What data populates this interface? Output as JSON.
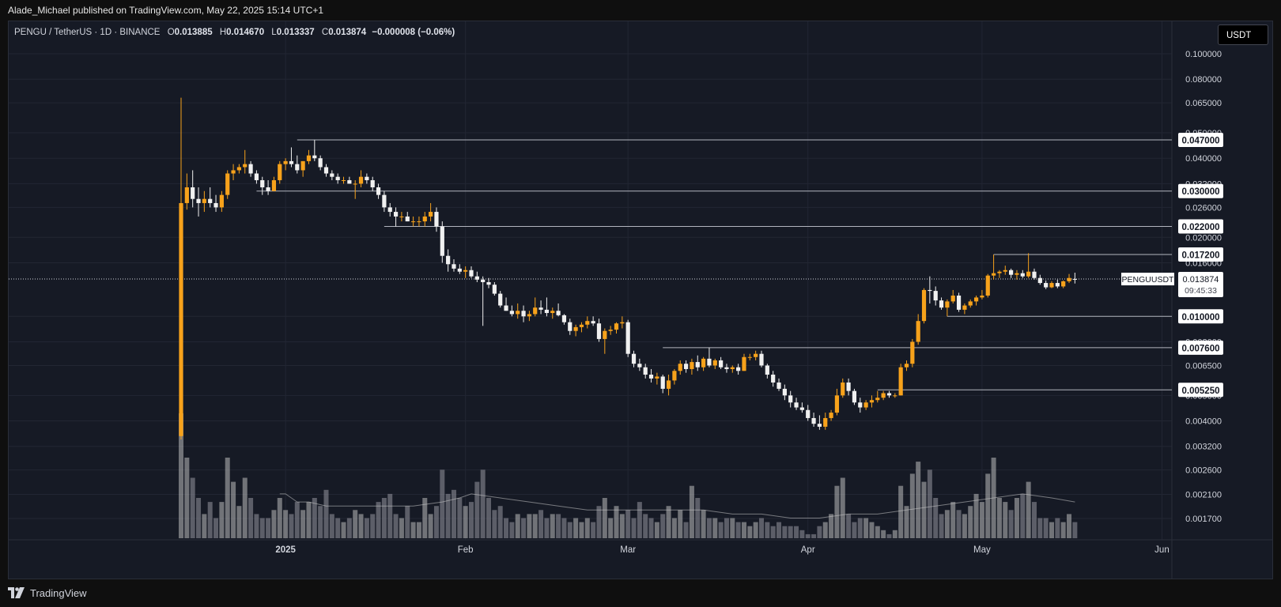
{
  "header": {
    "published": "Alade_Michael published on TradingView.com, May 22, 2025 15:14 UTC+1"
  },
  "legend": {
    "symbol": "PENGU / TetherUS · 1D · BINANCE",
    "o_label": "O",
    "o": "0.013885",
    "h_label": "H",
    "h": "0.014670",
    "l_label": "L",
    "l": "0.013337",
    "c_label": "C",
    "c": "0.013874",
    "change": "−0.000008 (−0.06%)"
  },
  "currency_button": "USDT",
  "price_tag": {
    "symbol": "PENGUUSDT",
    "price": "0.013874",
    "countdown": "09:45:33"
  },
  "footer": {
    "brand": "TradingView"
  },
  "colors": {
    "up": "#f7a21b",
    "down": "#f0f0f0",
    "background": "#161a25",
    "grid": "#222633"
  },
  "chart_data": {
    "type": "candlestick",
    "scale": "log",
    "x_ticks": [
      {
        "label": "2025",
        "day": 18
      },
      {
        "label": "Feb",
        "day": 49
      },
      {
        "label": "Mar",
        "day": 77
      },
      {
        "label": "Apr",
        "day": 108
      },
      {
        "label": "May",
        "day": 138
      },
      {
        "label": "Jun",
        "day": 169
      }
    ],
    "y_ticks": [
      "0.100000",
      "0.080000",
      "0.065000",
      "0.050000",
      "0.040000",
      "0.032000",
      "0.026000",
      "0.020000",
      "0.016000",
      "0.010000",
      "0.008000",
      "0.006500",
      "0.005000",
      "0.004000",
      "0.003200",
      "0.002600",
      "0.002100",
      "0.001700"
    ],
    "horizontal_levels": [
      {
        "label": "0.047000",
        "value": 0.047,
        "from_day": 20
      },
      {
        "label": "0.030000",
        "value": 0.03,
        "from_day": 13
      },
      {
        "label": "0.022000",
        "value": 0.022,
        "from_day": 35
      },
      {
        "label": "0.017200",
        "value": 0.0172,
        "from_day": 140
      },
      {
        "label": "0.010000",
        "value": 0.01,
        "from_day": 132
      },
      {
        "label": "0.007600",
        "value": 0.0076,
        "from_day": 83
      },
      {
        "label": "0.005250",
        "value": 0.00525,
        "from_day": 120
      }
    ],
    "current_price": 0.013874,
    "candles": [
      [
        0,
        0.0035,
        0.068,
        0.0034,
        0.027,
        31
      ],
      [
        1,
        0.027,
        0.035,
        0.0255,
        0.031,
        20
      ],
      [
        2,
        0.031,
        0.036,
        0.026,
        0.028,
        15
      ],
      [
        3,
        0.028,
        0.031,
        0.024,
        0.027,
        10
      ],
      [
        4,
        0.027,
        0.03,
        0.025,
        0.028,
        6
      ],
      [
        5,
        0.028,
        0.031,
        0.026,
        0.027,
        9
      ],
      [
        6,
        0.027,
        0.029,
        0.025,
        0.026,
        5
      ],
      [
        7,
        0.026,
        0.03,
        0.025,
        0.029,
        9
      ],
      [
        8,
        0.029,
        0.036,
        0.028,
        0.035,
        20
      ],
      [
        9,
        0.035,
        0.038,
        0.033,
        0.036,
        14
      ],
      [
        10,
        0.036,
        0.038,
        0.035,
        0.037,
        8
      ],
      [
        11,
        0.037,
        0.043,
        0.035,
        0.038,
        15
      ],
      [
        12,
        0.038,
        0.039,
        0.034,
        0.035,
        10
      ],
      [
        13,
        0.035,
        0.036,
        0.032,
        0.033,
        6
      ],
      [
        14,
        0.033,
        0.034,
        0.029,
        0.031,
        5
      ],
      [
        15,
        0.031,
        0.033,
        0.029,
        0.03,
        5
      ],
      [
        16,
        0.03,
        0.034,
        0.03,
        0.033,
        7
      ],
      [
        17,
        0.033,
        0.039,
        0.032,
        0.038,
        10
      ],
      [
        18,
        0.038,
        0.04,
        0.036,
        0.039,
        7
      ],
      [
        19,
        0.039,
        0.044,
        0.037,
        0.038,
        6
      ],
      [
        20,
        0.038,
        0.041,
        0.035,
        0.036,
        9
      ],
      [
        21,
        0.036,
        0.039,
        0.034,
        0.039,
        7
      ],
      [
        22,
        0.039,
        0.043,
        0.038,
        0.041,
        9
      ],
      [
        23,
        0.041,
        0.047,
        0.039,
        0.04,
        10
      ],
      [
        24,
        0.04,
        0.041,
        0.036,
        0.037,
        8
      ],
      [
        25,
        0.037,
        0.038,
        0.034,
        0.035,
        12
      ],
      [
        26,
        0.035,
        0.036,
        0.033,
        0.034,
        6
      ],
      [
        27,
        0.034,
        0.035,
        0.032,
        0.033,
        5
      ],
      [
        28,
        0.033,
        0.034,
        0.032,
        0.033,
        4
      ],
      [
        29,
        0.033,
        0.034,
        0.032,
        0.032,
        5
      ],
      [
        30,
        0.032,
        0.033,
        0.028,
        0.032,
        7
      ],
      [
        31,
        0.032,
        0.036,
        0.031,
        0.034,
        6
      ],
      [
        32,
        0.034,
        0.035,
        0.032,
        0.033,
        5
      ],
      [
        33,
        0.033,
        0.034,
        0.03,
        0.031,
        6
      ],
      [
        34,
        0.031,
        0.032,
        0.028,
        0.029,
        9
      ],
      [
        35,
        0.029,
        0.03,
        0.025,
        0.026,
        10
      ],
      [
        36,
        0.026,
        0.027,
        0.024,
        0.025,
        11
      ],
      [
        37,
        0.025,
        0.026,
        0.022,
        0.024,
        6
      ],
      [
        38,
        0.024,
        0.025,
        0.023,
        0.024,
        5
      ],
      [
        39,
        0.024,
        0.025,
        0.023,
        0.023,
        8
      ],
      [
        40,
        0.023,
        0.024,
        0.022,
        0.023,
        4
      ],
      [
        41,
        0.023,
        0.024,
        0.022,
        0.023,
        4
      ],
      [
        42,
        0.023,
        0.025,
        0.022,
        0.024,
        10
      ],
      [
        43,
        0.024,
        0.027,
        0.023,
        0.025,
        6
      ],
      [
        44,
        0.025,
        0.026,
        0.021,
        0.022,
        8
      ],
      [
        45,
        0.022,
        0.023,
        0.016,
        0.017,
        17
      ],
      [
        46,
        0.017,
        0.018,
        0.0148,
        0.0158,
        11
      ],
      [
        47,
        0.0158,
        0.0165,
        0.0148,
        0.0152,
        12
      ],
      [
        48,
        0.0152,
        0.0158,
        0.0145,
        0.0148,
        10
      ],
      [
        49,
        0.0148,
        0.0155,
        0.014,
        0.015,
        8
      ],
      [
        50,
        0.015,
        0.0155,
        0.014,
        0.0142,
        9
      ],
      [
        51,
        0.0142,
        0.0148,
        0.0135,
        0.0138,
        14
      ],
      [
        52,
        0.0138,
        0.0142,
        0.0092,
        0.0135,
        17
      ],
      [
        53,
        0.0135,
        0.014,
        0.0128,
        0.0132,
        10
      ],
      [
        54,
        0.0132,
        0.0135,
        0.012,
        0.0122,
        7
      ],
      [
        55,
        0.0122,
        0.0125,
        0.0108,
        0.011,
        8
      ],
      [
        56,
        0.011,
        0.0118,
        0.0105,
        0.0105,
        5
      ],
      [
        57,
        0.0105,
        0.011,
        0.01,
        0.0102,
        4
      ],
      [
        58,
        0.0102,
        0.0112,
        0.0098,
        0.0105,
        6
      ],
      [
        59,
        0.0105,
        0.011,
        0.0095,
        0.01,
        5
      ],
      [
        60,
        0.01,
        0.0105,
        0.0096,
        0.0102,
        6
      ],
      [
        61,
        0.0102,
        0.0118,
        0.01,
        0.0108,
        6
      ],
      [
        62,
        0.0108,
        0.0115,
        0.0102,
        0.0106,
        7
      ],
      [
        63,
        0.0106,
        0.0118,
        0.01,
        0.0103,
        5
      ],
      [
        64,
        0.0103,
        0.0108,
        0.0098,
        0.0105,
        6
      ],
      [
        65,
        0.0105,
        0.0112,
        0.01,
        0.0101,
        6
      ],
      [
        66,
        0.0101,
        0.0102,
        0.0093,
        0.0095,
        5
      ],
      [
        67,
        0.0095,
        0.0098,
        0.0085,
        0.0088,
        4
      ],
      [
        68,
        0.0088,
        0.0093,
        0.0084,
        0.0091,
        5
      ],
      [
        69,
        0.0091,
        0.0095,
        0.0087,
        0.0093,
        4
      ],
      [
        70,
        0.0093,
        0.01,
        0.009,
        0.0096,
        5
      ],
      [
        71,
        0.0096,
        0.01,
        0.0092,
        0.0094,
        4
      ],
      [
        72,
        0.0094,
        0.0098,
        0.008,
        0.0082,
        8
      ],
      [
        73,
        0.0082,
        0.009,
        0.0072,
        0.0088,
        10
      ],
      [
        74,
        0.0088,
        0.0092,
        0.0085,
        0.0089,
        5
      ],
      [
        75,
        0.0089,
        0.0095,
        0.0086,
        0.0094,
        8
      ],
      [
        76,
        0.0094,
        0.01,
        0.009,
        0.0095,
        6
      ],
      [
        77,
        0.0095,
        0.0097,
        0.007,
        0.0072,
        7
      ],
      [
        78,
        0.0072,
        0.0074,
        0.0064,
        0.0066,
        5
      ],
      [
        79,
        0.0066,
        0.0069,
        0.0062,
        0.0064,
        9
      ],
      [
        80,
        0.0064,
        0.0066,
        0.0058,
        0.006,
        6
      ],
      [
        81,
        0.006,
        0.0063,
        0.0056,
        0.0058,
        5
      ],
      [
        82,
        0.0058,
        0.0061,
        0.0055,
        0.0059,
        4
      ],
      [
        83,
        0.0059,
        0.006,
        0.0051,
        0.0053,
        6
      ],
      [
        84,
        0.0053,
        0.006,
        0.005,
        0.0057,
        8
      ],
      [
        85,
        0.0057,
        0.0063,
        0.0055,
        0.0062,
        5
      ],
      [
        86,
        0.0062,
        0.0068,
        0.006,
        0.0066,
        7
      ],
      [
        87,
        0.0066,
        0.0068,
        0.0061,
        0.0063,
        4
      ],
      [
        88,
        0.0063,
        0.0069,
        0.006,
        0.0067,
        13
      ],
      [
        89,
        0.0067,
        0.0071,
        0.0062,
        0.0064,
        10
      ],
      [
        90,
        0.0064,
        0.007,
        0.0062,
        0.0069,
        7
      ],
      [
        91,
        0.0069,
        0.0076,
        0.0064,
        0.0065,
        5
      ],
      [
        92,
        0.0065,
        0.0069,
        0.0063,
        0.0068,
        5
      ],
      [
        93,
        0.0068,
        0.007,
        0.0063,
        0.0064,
        4
      ],
      [
        94,
        0.0064,
        0.0066,
        0.0061,
        0.0063,
        5
      ],
      [
        95,
        0.0063,
        0.0065,
        0.0061,
        0.0064,
        5
      ],
      [
        96,
        0.0064,
        0.0066,
        0.006,
        0.0062,
        4
      ],
      [
        97,
        0.0062,
        0.0072,
        0.0062,
        0.007,
        4
      ],
      [
        98,
        0.007,
        0.0072,
        0.0068,
        0.007,
        3
      ],
      [
        99,
        0.007,
        0.0074,
        0.0068,
        0.0072,
        4
      ],
      [
        100,
        0.0072,
        0.0074,
        0.0064,
        0.0065,
        5
      ],
      [
        101,
        0.0065,
        0.0066,
        0.0058,
        0.006,
        4
      ],
      [
        102,
        0.006,
        0.0062,
        0.0054,
        0.0056,
        3
      ],
      [
        103,
        0.0056,
        0.0058,
        0.0052,
        0.0053,
        4
      ],
      [
        104,
        0.0053,
        0.0055,
        0.0048,
        0.005,
        3
      ],
      [
        105,
        0.005,
        0.0052,
        0.0045,
        0.0047,
        3
      ],
      [
        106,
        0.0047,
        0.0049,
        0.0044,
        0.0045,
        3
      ],
      [
        107,
        0.0045,
        0.0047,
        0.0043,
        0.0044,
        2
      ],
      [
        108,
        0.0044,
        0.0046,
        0.004,
        0.0041,
        1
      ],
      [
        109,
        0.0041,
        0.0043,
        0.0038,
        0.0039,
        1
      ],
      [
        110,
        0.0039,
        0.0042,
        0.0037,
        0.0038,
        3
      ],
      [
        111,
        0.0038,
        0.0043,
        0.0037,
        0.0041,
        4
      ],
      [
        112,
        0.0041,
        0.0044,
        0.004,
        0.0043,
        6
      ],
      [
        113,
        0.0043,
        0.0053,
        0.0042,
        0.005,
        13
      ],
      [
        114,
        0.005,
        0.0058,
        0.0049,
        0.0056,
        15
      ],
      [
        115,
        0.0056,
        0.0058,
        0.005,
        0.0052,
        6
      ],
      [
        116,
        0.0052,
        0.0053,
        0.0046,
        0.0047,
        4
      ],
      [
        117,
        0.0047,
        0.0049,
        0.0043,
        0.0045,
        5
      ],
      [
        118,
        0.0045,
        0.0048,
        0.0044,
        0.0047,
        5
      ],
      [
        119,
        0.0047,
        0.005,
        0.0045,
        0.0048,
        4
      ],
      [
        120,
        0.0048,
        0.0052,
        0.0047,
        0.0049,
        3
      ],
      [
        121,
        0.0049,
        0.0052,
        0.0048,
        0.0051,
        2
      ],
      [
        122,
        0.0051,
        0.0052,
        0.0049,
        0.005,
        1
      ],
      [
        123,
        0.005,
        0.0051,
        0.0049,
        0.005,
        2
      ],
      [
        124,
        0.005,
        0.0066,
        0.005,
        0.0064,
        13
      ],
      [
        125,
        0.0064,
        0.0068,
        0.0062,
        0.0066,
        8
      ],
      [
        126,
        0.0066,
        0.0082,
        0.0064,
        0.008,
        16
      ],
      [
        127,
        0.008,
        0.0102,
        0.0078,
        0.0096,
        19
      ],
      [
        128,
        0.0096,
        0.0128,
        0.0094,
        0.0126,
        14
      ],
      [
        129,
        0.0126,
        0.0142,
        0.0112,
        0.0125,
        17
      ],
      [
        130,
        0.0125,
        0.013,
        0.011,
        0.0115,
        10
      ],
      [
        131,
        0.0115,
        0.0118,
        0.0106,
        0.0108,
        6
      ],
      [
        132,
        0.0108,
        0.0116,
        0.01,
        0.0114,
        7
      ],
      [
        133,
        0.0114,
        0.0126,
        0.0112,
        0.012,
        9
      ],
      [
        134,
        0.012,
        0.0123,
        0.0104,
        0.0106,
        7
      ],
      [
        135,
        0.0106,
        0.0112,
        0.0102,
        0.011,
        6
      ],
      [
        136,
        0.011,
        0.0116,
        0.0108,
        0.0114,
        8
      ],
      [
        137,
        0.0114,
        0.012,
        0.011,
        0.0118,
        11
      ],
      [
        138,
        0.0118,
        0.0126,
        0.0116,
        0.012,
        9
      ],
      [
        139,
        0.012,
        0.0145,
        0.0118,
        0.0143,
        16
      ],
      [
        140,
        0.0143,
        0.0172,
        0.0138,
        0.0146,
        20
      ],
      [
        141,
        0.0146,
        0.015,
        0.014,
        0.0148,
        10
      ],
      [
        142,
        0.0148,
        0.0156,
        0.0144,
        0.015,
        9
      ],
      [
        143,
        0.015,
        0.0152,
        0.014,
        0.0144,
        7
      ],
      [
        144,
        0.0144,
        0.015,
        0.0138,
        0.0146,
        10
      ],
      [
        145,
        0.0146,
        0.015,
        0.014,
        0.0142,
        11
      ],
      [
        146,
        0.0142,
        0.0174,
        0.014,
        0.0148,
        14
      ],
      [
        147,
        0.0148,
        0.0152,
        0.0138,
        0.014,
        9
      ],
      [
        148,
        0.014,
        0.0144,
        0.0132,
        0.0134,
        5
      ],
      [
        149,
        0.0134,
        0.0137,
        0.0127,
        0.0129,
        5
      ],
      [
        150,
        0.0129,
        0.0136,
        0.0128,
        0.0134,
        4
      ],
      [
        151,
        0.0134,
        0.0138,
        0.0128,
        0.013,
        5
      ],
      [
        152,
        0.013,
        0.0137,
        0.0128,
        0.0136,
        4
      ],
      [
        153,
        0.0136,
        0.0145,
        0.0134,
        0.014,
        6
      ],
      [
        154,
        0.01388,
        0.01467,
        0.01334,
        0.01387,
        4
      ]
    ],
    "volume_ma": [
      [
        17,
        11
      ],
      [
        18,
        11
      ],
      [
        19,
        10
      ],
      [
        20,
        9
      ],
      [
        22,
        9
      ],
      [
        25,
        8
      ],
      [
        30,
        8
      ],
      [
        35,
        8
      ],
      [
        40,
        8
      ],
      [
        45,
        9
      ],
      [
        48,
        10
      ],
      [
        50,
        11
      ],
      [
        55,
        10
      ],
      [
        60,
        9
      ],
      [
        65,
        8
      ],
      [
        70,
        7
      ],
      [
        75,
        7
      ],
      [
        80,
        7
      ],
      [
        85,
        7
      ],
      [
        90,
        7
      ],
      [
        95,
        6
      ],
      [
        100,
        6
      ],
      [
        105,
        5
      ],
      [
        110,
        5
      ],
      [
        115,
        6
      ],
      [
        120,
        6
      ],
      [
        125,
        7
      ],
      [
        130,
        8
      ],
      [
        135,
        9
      ],
      [
        140,
        10
      ],
      [
        145,
        11
      ],
      [
        150,
        10
      ],
      [
        154,
        9
      ]
    ]
  }
}
